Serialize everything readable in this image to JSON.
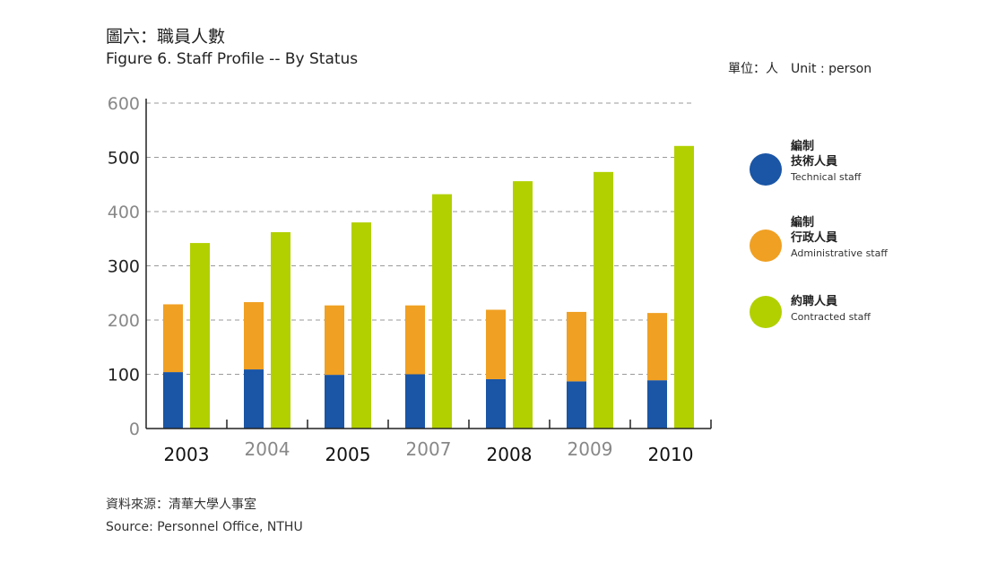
{
  "header": {
    "title_zh": "圖六：職員人數",
    "title_en": "Figure 6. Staff Profile -- By Status",
    "unit": "單位：人　Unit : person"
  },
  "source": {
    "zh": "資料來源：清華大學人事室",
    "en": "Source: Personnel Office, NTHU"
  },
  "legend": [
    {
      "line1": "編制",
      "line2": "技術人員",
      "line3": "Technical staff",
      "color": "#1a55a6"
    },
    {
      "line1": "編制",
      "line2": "行政人員",
      "line3": "Administrative staff",
      "color": "#f0a022"
    },
    {
      "line1": "",
      "line2": "約聘人員",
      "line3": "Contracted staff",
      "color": "#b2d000"
    }
  ],
  "chart_data": {
    "type": "bar",
    "layout": "stacked technical + administrative bar beside contracted bar",
    "categories": [
      "2003",
      "2004",
      "2005",
      "2007",
      "2008",
      "2009",
      "2010"
    ],
    "series": [
      {
        "name": "Technical staff",
        "color": "#1a55a6",
        "values": [
          104,
          109,
          99,
          100,
          91,
          87,
          89
        ]
      },
      {
        "name": "Administrative staff",
        "color": "#f0a022",
        "values": [
          125,
          124,
          128,
          127,
          128,
          128,
          124
        ]
      },
      {
        "name": "Contracted staff",
        "color": "#b2d000",
        "values": [
          342,
          362,
          380,
          432,
          456,
          473,
          521
        ]
      }
    ],
    "y_ticks": [
      "0",
      "100",
      "200",
      "300",
      "400",
      "500",
      "600"
    ],
    "ylim": [
      0,
      600
    ],
    "grid": "dashed horizontal",
    "legend_position": "right"
  }
}
